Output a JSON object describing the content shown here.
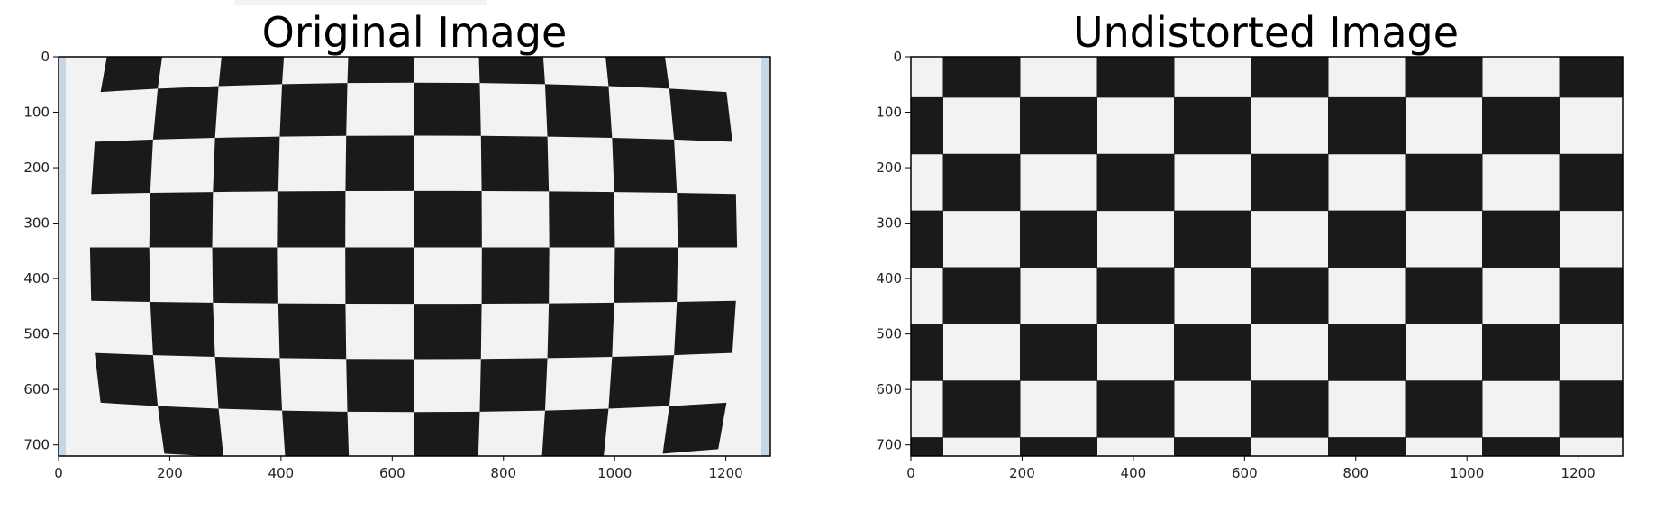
{
  "panels": [
    {
      "id": "original",
      "title": "Original Image",
      "image_desc": "distorted-checkerboard",
      "x_ticks": [
        "0",
        "200",
        "400",
        "600",
        "800",
        "1000",
        "1200"
      ],
      "y_ticks": [
        "0",
        "100",
        "200",
        "300",
        "400",
        "500",
        "600",
        "700"
      ]
    },
    {
      "id": "undistorted",
      "title": "Undistorted Image",
      "image_desc": "undistorted-checkerboard",
      "x_ticks": [
        "0",
        "200",
        "400",
        "600",
        "800",
        "1000",
        "1200"
      ],
      "y_ticks": [
        "0",
        "100",
        "200",
        "300",
        "400",
        "500",
        "600",
        "700"
      ]
    }
  ],
  "colors": {
    "black_square": "#1a1a1a",
    "white_square": "#f2f2f2",
    "edge_tint": "#c7d6e3",
    "axis": "#000000"
  }
}
